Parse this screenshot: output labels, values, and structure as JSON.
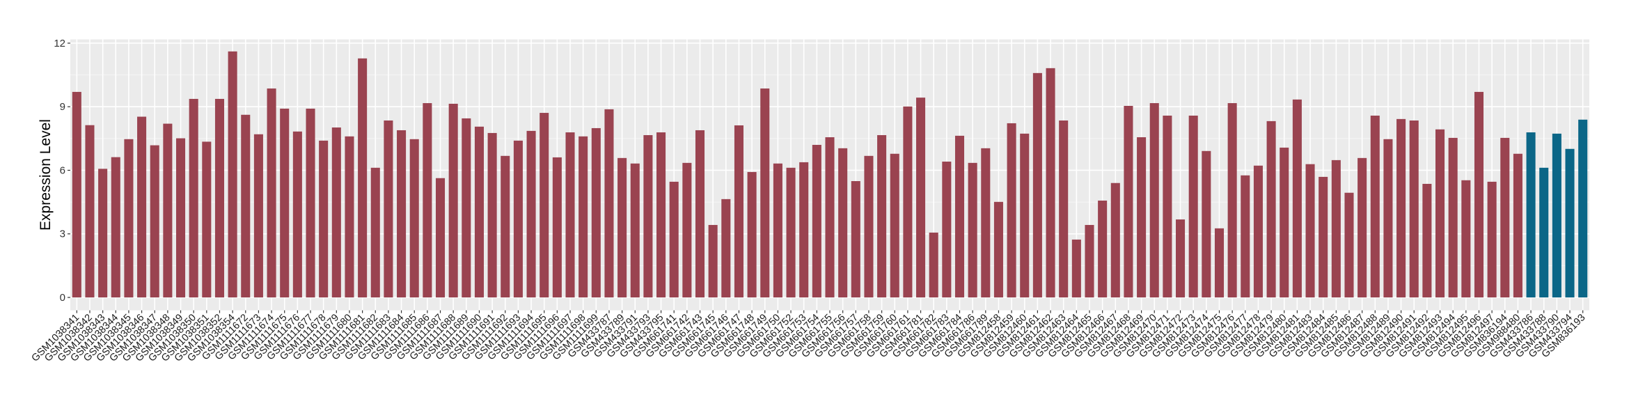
{
  "chart_data": {
    "type": "bar",
    "title": "",
    "xlabel": "",
    "ylabel": "Expression Level",
    "ylim": [
      0,
      12
    ],
    "yticks": [
      0,
      3,
      6,
      9,
      12
    ],
    "grid": true,
    "legend": "none",
    "colors": {
      "group1": "#9a4350",
      "group2": "#0b6687",
      "panel": "#ebebeb",
      "grid": "#ffffff"
    },
    "categories": [
      "GSM1038341",
      "GSM1038342",
      "GSM1038343",
      "GSM1038344",
      "GSM1038345",
      "GSM1038346",
      "GSM1038347",
      "GSM1038348",
      "GSM1038349",
      "GSM1038350",
      "GSM1038351",
      "GSM1038352",
      "GSM1038354",
      "GSM1111672",
      "GSM1111673",
      "GSM1111674",
      "GSM1111675",
      "GSM1111676",
      "GSM1111677",
      "GSM1111678",
      "GSM1111679",
      "GSM1111680",
      "GSM1111681",
      "GSM1111682",
      "GSM1111683",
      "GSM1111684",
      "GSM1111685",
      "GSM1111686",
      "GSM1111687",
      "GSM1111688",
      "GSM1111689",
      "GSM1111690",
      "GSM1111691",
      "GSM1111692",
      "GSM1111693",
      "GSM1111694",
      "GSM1111695",
      "GSM1111696",
      "GSM1111697",
      "GSM1111698",
      "GSM1111699",
      "GSM433787",
      "GSM433789",
      "GSM433791",
      "GSM433793",
      "GSM433795",
      "GSM661741",
      "GSM661742",
      "GSM661743",
      "GSM661745",
      "GSM661746",
      "GSM661747",
      "GSM661748",
      "GSM661749",
      "GSM661750",
      "GSM661752",
      "GSM661753",
      "GSM661754",
      "GSM661755",
      "GSM661756",
      "GSM661757",
      "GSM661758",
      "GSM661759",
      "GSM661760",
      "GSM661761",
      "GSM661781",
      "GSM661782",
      "GSM661783",
      "GSM661784",
      "GSM661786",
      "GSM661789",
      "GSM812458",
      "GSM812459",
      "GSM812460",
      "GSM812461",
      "GSM812462",
      "GSM812463",
      "GSM812464",
      "GSM812465",
      "GSM812466",
      "GSM812467",
      "GSM812468",
      "GSM812469",
      "GSM812470",
      "GSM812471",
      "GSM812472",
      "GSM812473",
      "GSM812474",
      "GSM812475",
      "GSM812476",
      "GSM812477",
      "GSM812478",
      "GSM812479",
      "GSM812480",
      "GSM812481",
      "GSM812483",
      "GSM812484",
      "GSM812485",
      "GSM812486",
      "GSM812487",
      "GSM812488",
      "GSM812489",
      "GSM812490",
      "GSM812491",
      "GSM812492",
      "GSM812493",
      "GSM812494",
      "GSM812495",
      "GSM812496",
      "GSM812497",
      "GSM836194",
      "GSM988480",
      "GSM433786",
      "GSM433788",
      "GSM433790",
      "GSM433794",
      "GSM836193"
    ],
    "values": [
      9.7,
      8.13,
      6.07,
      6.62,
      7.47,
      8.53,
      7.18,
      8.2,
      7.51,
      9.37,
      7.35,
      9.37,
      11.61,
      8.62,
      7.7,
      9.86,
      8.91,
      7.83,
      8.91,
      7.4,
      8.02,
      7.6,
      11.28,
      6.12,
      8.35,
      7.89,
      7.47,
      9.17,
      5.63,
      9.14,
      8.45,
      8.06,
      7.76,
      6.68,
      7.4,
      7.86,
      8.71,
      6.61,
      7.79,
      7.6,
      7.99,
      8.88,
      6.58,
      6.32,
      7.66,
      7.79,
      5.46,
      6.35,
      7.89,
      3.42,
      4.64,
      8.12,
      5.92,
      9.86,
      6.32,
      6.12,
      6.38,
      7.2,
      7.56,
      7.04,
      5.49,
      6.68,
      7.66,
      6.78,
      9.01,
      9.43,
      3.06,
      6.41,
      7.63,
      6.35,
      7.04,
      4.51,
      8.22,
      7.73,
      10.59,
      10.82,
      8.35,
      2.73,
      3.42,
      4.57,
      5.4,
      9.04,
      7.56,
      9.17,
      8.58,
      3.68,
      8.58,
      6.91,
      3.26,
      9.17,
      5.76,
      6.22,
      8.32,
      7.07,
      9.34,
      6.29,
      5.69,
      6.48,
      4.94,
      6.58,
      8.58,
      7.47,
      8.42,
      8.35,
      5.36,
      7.93,
      7.53,
      5.53,
      9.7,
      5.46,
      7.53,
      6.78,
      7.79,
      6.12,
      7.73,
      7.01,
      8.39
    ],
    "groups": [
      "group1",
      "group1",
      "group1",
      "group1",
      "group1",
      "group1",
      "group1",
      "group1",
      "group1",
      "group1",
      "group1",
      "group1",
      "group1",
      "group1",
      "group1",
      "group1",
      "group1",
      "group1",
      "group1",
      "group1",
      "group1",
      "group1",
      "group1",
      "group1",
      "group1",
      "group1",
      "group1",
      "group1",
      "group1",
      "group1",
      "group1",
      "group1",
      "group1",
      "group1",
      "group1",
      "group1",
      "group1",
      "group1",
      "group1",
      "group1",
      "group1",
      "group1",
      "group1",
      "group1",
      "group1",
      "group1",
      "group1",
      "group1",
      "group1",
      "group1",
      "group1",
      "group1",
      "group1",
      "group1",
      "group1",
      "group1",
      "group1",
      "group1",
      "group1",
      "group1",
      "group1",
      "group1",
      "group1",
      "group1",
      "group1",
      "group1",
      "group1",
      "group1",
      "group1",
      "group1",
      "group1",
      "group1",
      "group1",
      "group1",
      "group1",
      "group1",
      "group1",
      "group1",
      "group1",
      "group1",
      "group1",
      "group1",
      "group1",
      "group1",
      "group1",
      "group1",
      "group1",
      "group1",
      "group1",
      "group1",
      "group1",
      "group1",
      "group1",
      "group1",
      "group1",
      "group1",
      "group1",
      "group1",
      "group1",
      "group1",
      "group1",
      "group1",
      "group1",
      "group1",
      "group1",
      "group1",
      "group1",
      "group1",
      "group1",
      "group1",
      "group1",
      "group1",
      "group2",
      "group2",
      "group2",
      "group2",
      "group2"
    ]
  }
}
